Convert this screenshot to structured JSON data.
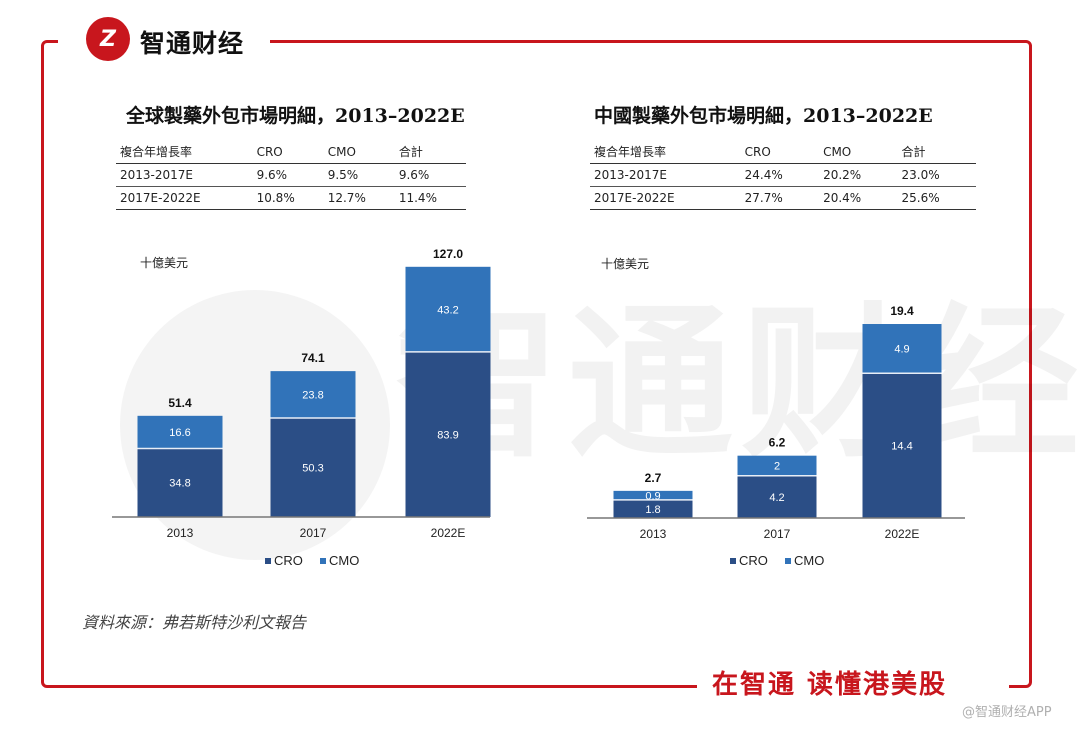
{
  "brand": {
    "name": "智通财经",
    "logo_letter": "Z",
    "slogan": "在智通  读懂港美股",
    "credit": "@智通财经APP"
  },
  "colors": {
    "frame": "#c8161d",
    "cro": "#2b4e86",
    "cmo": "#3173b9"
  },
  "source": "資料來源：弗若斯特沙利文報告",
  "watermark": "智通财经",
  "panels": [
    {
      "title": "全球製藥外包市場明細，2013–2022E",
      "table": {
        "headers": [
          "複合年增長率",
          "CRO",
          "CMO",
          "合計"
        ],
        "rows": [
          [
            "2013-2017E",
            "9.6%",
            "9.5%",
            "9.6%"
          ],
          [
            "2017E-2022E",
            "10.8%",
            "12.7%",
            "11.4%"
          ]
        ]
      },
      "unit": "十億美元",
      "legend": [
        "CRO",
        "CMO"
      ]
    },
    {
      "title": "中國製藥外包市場明細，2013–2022E",
      "table": {
        "headers": [
          "複合年增長率",
          "CRO",
          "CMO",
          "合計"
        ],
        "rows": [
          [
            "2013-2017E",
            "24.4%",
            "20.2%",
            "23.0%"
          ],
          [
            "2017E-2022E",
            "27.7%",
            "20.4%",
            "25.6%"
          ]
        ]
      },
      "unit": "十億美元",
      "legend": [
        "CRO",
        "CMO"
      ]
    }
  ],
  "chart_data": [
    {
      "type": "bar",
      "stacked": true,
      "title": "全球製藥外包市場明細，2013–2022E",
      "ylabel": "十億美元",
      "categories": [
        "2013",
        "2017",
        "2022E"
      ],
      "series": [
        {
          "name": "CRO",
          "values": [
            34.8,
            50.3,
            83.9
          ]
        },
        {
          "name": "CMO",
          "values": [
            16.6,
            23.8,
            43.2
          ]
        }
      ],
      "totals": [
        "51.4",
        "74.1",
        "127.0"
      ],
      "ylim": [
        0,
        127
      ]
    },
    {
      "type": "bar",
      "stacked": true,
      "title": "中國製藥外包市場明細，2013–2022E",
      "ylabel": "十億美元",
      "categories": [
        "2013",
        "2017",
        "2022E"
      ],
      "series": [
        {
          "name": "CRO",
          "values": [
            1.8,
            4.2,
            14.4
          ]
        },
        {
          "name": "CMO",
          "values": [
            0.9,
            2.0,
            4.9
          ]
        }
      ],
      "totals": [
        "2.7",
        "6.2",
        "19.4"
      ],
      "ylim": [
        0,
        19.4
      ]
    }
  ]
}
